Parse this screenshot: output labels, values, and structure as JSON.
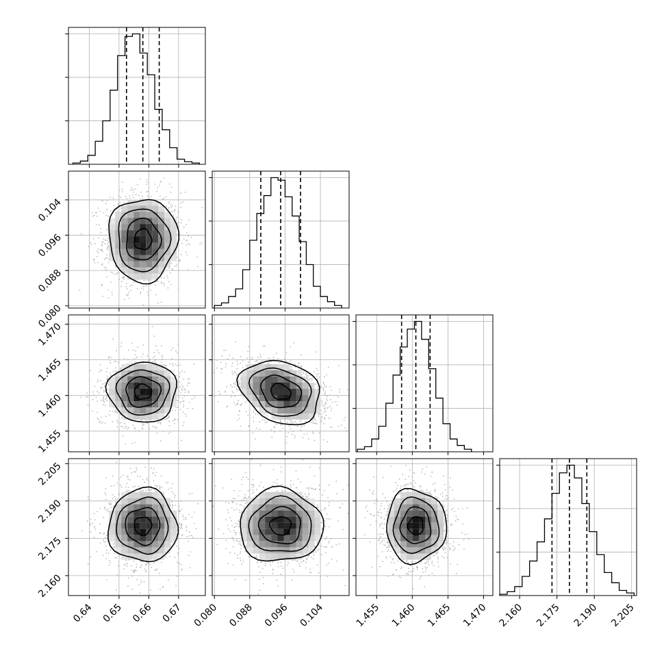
{
  "chart_data": {
    "type": "corner",
    "title": "",
    "grid": true,
    "parameters": [
      {
        "index": 0,
        "range": [
          0.633,
          0.679
        ],
        "ticks": [
          0.64,
          0.65,
          0.66,
          0.67
        ],
        "tick_labels": [
          "0.64",
          "0.65",
          "0.66",
          "0.67"
        ],
        "quantiles": [
          0.6525,
          0.658,
          0.6635
        ],
        "hist_bins": {
          "edges": [
            0.6345,
            0.637,
            0.6395,
            0.642,
            0.6445,
            0.647,
            0.6495,
            0.652,
            0.6545,
            0.657,
            0.6595,
            0.662,
            0.6645,
            0.667,
            0.6695,
            0.672,
            0.6745,
            0.677
          ],
          "counts": [
            0.01,
            0.025,
            0.07,
            0.18,
            0.34,
            0.58,
            0.85,
            1.0,
            1.02,
            0.87,
            0.7,
            0.43,
            0.27,
            0.13,
            0.04,
            0.02,
            0.01
          ]
        }
      },
      {
        "index": 1,
        "range": [
          0.0795,
          0.1105
        ],
        "ticks": [
          0.08,
          0.088,
          0.096,
          0.104
        ],
        "tick_labels": [
          "0.080",
          "0.088",
          "0.096",
          "0.104"
        ],
        "quantiles": [
          0.0905,
          0.095,
          0.0995
        ],
        "hist_bins": {
          "edges": [
            0.08,
            0.0816,
            0.0832,
            0.0848,
            0.0864,
            0.088,
            0.0896,
            0.0912,
            0.0928,
            0.0944,
            0.096,
            0.0976,
            0.0992,
            0.1008,
            0.1024,
            0.104,
            0.1056,
            0.1072,
            0.1088
          ],
          "counts": [
            0.02,
            0.04,
            0.09,
            0.15,
            0.3,
            0.53,
            0.74,
            0.88,
            1.02,
            1.0,
            0.87,
            0.72,
            0.52,
            0.34,
            0.17,
            0.09,
            0.05,
            0.02
          ]
        }
      },
      {
        "index": 2,
        "range": [
          1.4521,
          1.4713
        ],
        "ticks": [
          1.455,
          1.46,
          1.465,
          1.47
        ],
        "tick_labels": [
          "1.455",
          "1.460",
          "1.465",
          "1.470"
        ],
        "quantiles": [
          1.4585,
          1.4605,
          1.4625
        ],
        "hist_bins": {
          "edges": [
            1.4523,
            1.4533,
            1.4543,
            1.4553,
            1.4563,
            1.4573,
            1.4583,
            1.4593,
            1.4603,
            1.4613,
            1.4623,
            1.4633,
            1.4643,
            1.4653,
            1.4663,
            1.4673,
            1.4683
          ],
          "counts": [
            0.02,
            0.04,
            0.1,
            0.2,
            0.38,
            0.6,
            0.82,
            0.96,
            1.02,
            0.88,
            0.65,
            0.42,
            0.22,
            0.1,
            0.05,
            0.02
          ]
        }
      },
      {
        "index": 3,
        "range": [
          2.152,
          2.207
        ],
        "ticks": [
          2.16,
          2.175,
          2.19,
          2.205
        ],
        "tick_labels": [
          "2.160",
          "2.175",
          "2.190",
          "2.205"
        ],
        "quantiles": [
          2.173,
          2.18,
          2.187
        ],
        "hist_bins": {
          "edges": [
            2.152,
            2.155,
            2.158,
            2.161,
            2.164,
            2.167,
            2.17,
            2.173,
            2.176,
            2.179,
            2.182,
            2.185,
            2.188,
            2.191,
            2.194,
            2.197,
            2.2,
            2.203,
            2.206
          ],
          "counts": [
            0.01,
            0.03,
            0.07,
            0.15,
            0.27,
            0.42,
            0.6,
            0.8,
            0.96,
            1.02,
            0.92,
            0.72,
            0.5,
            0.32,
            0.18,
            0.1,
            0.04,
            0.02
          ]
        }
      }
    ],
    "panels_2d": [
      {
        "row": 1,
        "col": 0,
        "center": [
          0.658,
          0.095
        ],
        "correlation": 0.0
      },
      {
        "row": 2,
        "col": 0,
        "center": [
          0.658,
          1.4605
        ],
        "correlation": 0.0
      },
      {
        "row": 2,
        "col": 1,
        "center": [
          0.095,
          1.4605
        ],
        "correlation": -0.35
      },
      {
        "row": 3,
        "col": 0,
        "center": [
          0.658,
          2.18
        ],
        "correlation": 0.0
      },
      {
        "row": 3,
        "col": 1,
        "center": [
          0.095,
          2.18
        ],
        "correlation": 0.0
      },
      {
        "row": 3,
        "col": 2,
        "center": [
          1.4605,
          2.18
        ],
        "correlation": 0.0
      }
    ],
    "contour_levels_sigma": [
      0.5,
      1.0,
      1.5,
      2.0
    ],
    "colors": {
      "line": "#000000",
      "grid": "#b0b0b0",
      "points": "#b8b8b8"
    }
  }
}
